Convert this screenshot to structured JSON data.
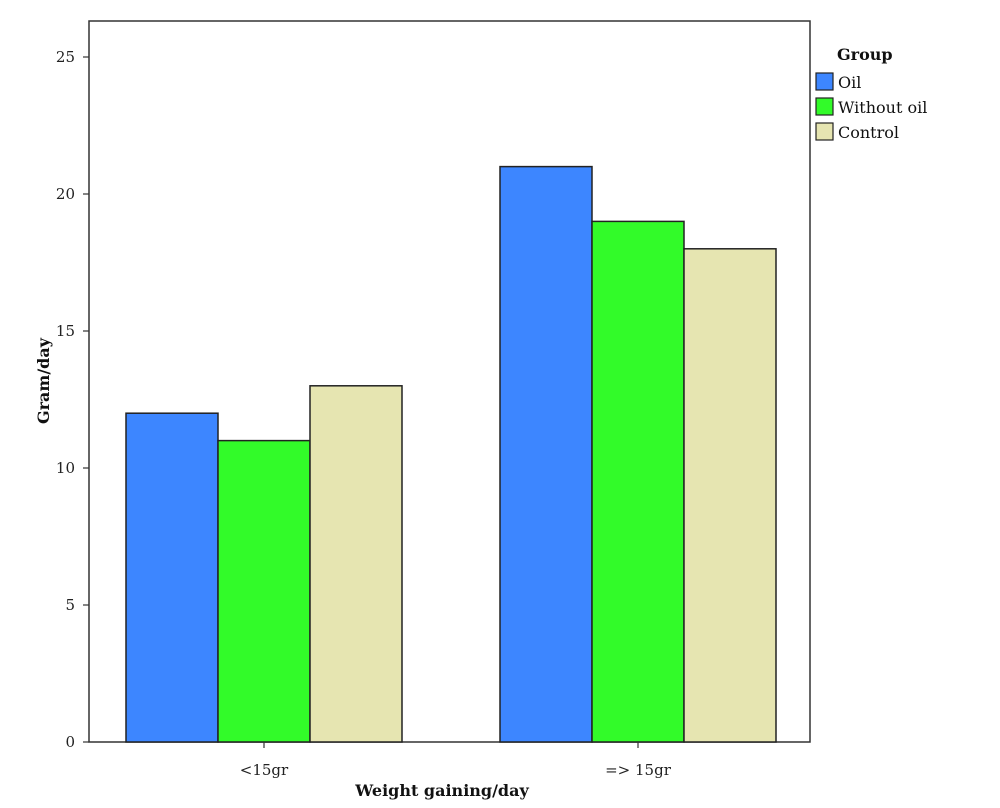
{
  "chart_data": {
    "type": "bar",
    "categories": [
      "<15gr",
      "=> 15gr"
    ],
    "series": [
      {
        "name": "Oil",
        "values": [
          12,
          21
        ],
        "color": "#3d86ff"
      },
      {
        "name": "Without oil",
        "values": [
          11,
          19
        ],
        "color": "#32fb29"
      },
      {
        "name": "Control",
        "values": [
          13,
          18
        ],
        "color": "#e6e5b1"
      }
    ],
    "xlabel": "Weight gaining/day",
    "ylabel": "Gram/day",
    "ylim": [
      0,
      25
    ],
    "yticks": [
      0,
      5,
      10,
      15,
      20,
      25
    ],
    "grid": false,
    "legend": {
      "title": "Group",
      "position": "right"
    }
  }
}
